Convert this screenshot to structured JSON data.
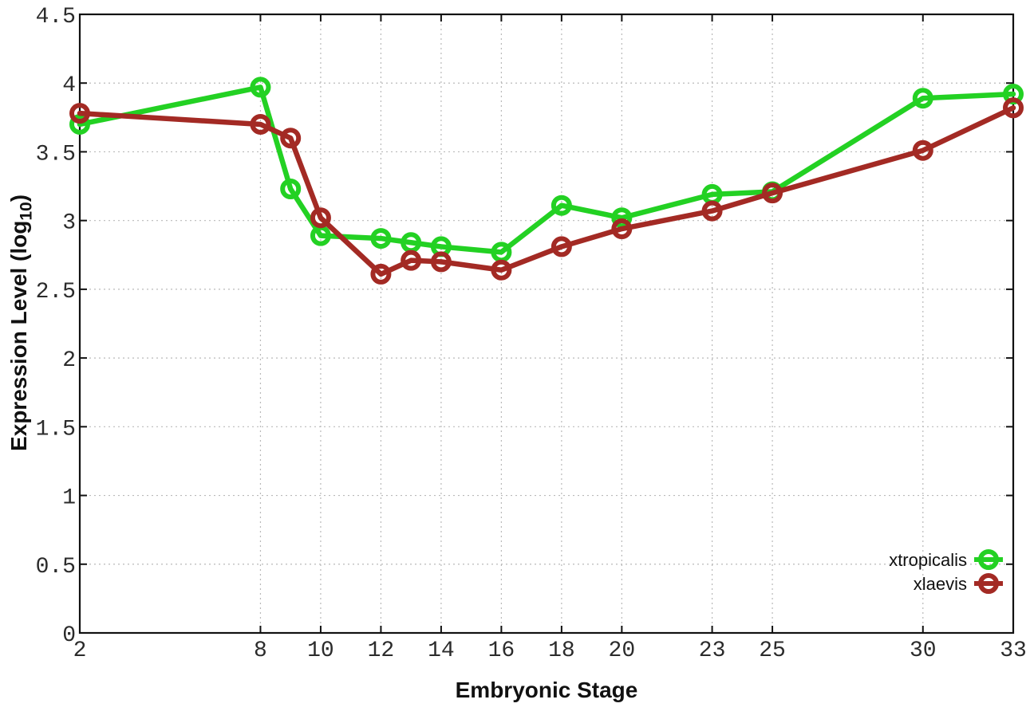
{
  "figure": {
    "background_color": "#ffffff"
  },
  "chart_data": {
    "type": "line",
    "title": "",
    "xlabel": "Embryonic Stage",
    "ylabel": "Expression Level (log10)",
    "ylabel_parts": {
      "prefix": "Expression Level (log",
      "sub": "10",
      "suffix": ")"
    },
    "xlim": [
      2,
      33
    ],
    "ylim": [
      0,
      4.5
    ],
    "grid": true,
    "grid_style": "dotted",
    "legend_position": "inside-bottom-right",
    "marker": "open-circle",
    "x_ticks": [
      2,
      8,
      10,
      12,
      14,
      16,
      18,
      20,
      23,
      25,
      30,
      33
    ],
    "x_tick_labels": [
      "2",
      "8",
      "10",
      "12",
      "14",
      "16",
      "18",
      "20",
      "23",
      "25",
      "30",
      "33"
    ],
    "y_ticks": [
      0,
      0.5,
      1,
      1.5,
      2,
      2.5,
      3,
      3.5,
      4,
      4.5
    ],
    "y_tick_labels": [
      "0",
      "0.5",
      "1",
      "1.5",
      "2",
      "2.5",
      "3",
      "3.5",
      "4",
      "4.5"
    ],
    "x": [
      2,
      8,
      9,
      10,
      12,
      13,
      14,
      16,
      18,
      20,
      23,
      25,
      30,
      33
    ],
    "series": [
      {
        "name": "xtropicalis",
        "color": "#23d123",
        "values": [
          3.7,
          3.97,
          3.23,
          2.89,
          2.87,
          2.84,
          2.81,
          2.77,
          3.11,
          3.02,
          3.19,
          3.21,
          3.89,
          3.92
        ]
      },
      {
        "name": "xlaevis",
        "color": "#a32a24",
        "values": [
          3.78,
          3.7,
          3.6,
          3.02,
          2.61,
          2.71,
          2.7,
          2.64,
          2.81,
          2.94,
          3.07,
          3.2,
          3.51,
          3.82
        ]
      }
    ],
    "colors": {
      "grid": "#b9b9b9",
      "axis": "#111111",
      "tick_labels": "#2b2b2b"
    }
  }
}
